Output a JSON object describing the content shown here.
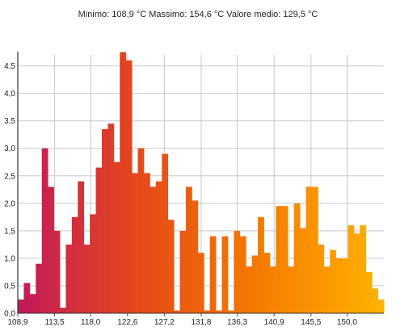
{
  "header": {
    "summary": "Minimo: 108,9 °C Massimo: 154,6 °C Valore medio: 129,5 °C"
  },
  "chart_data": {
    "type": "bar",
    "title": "",
    "xlabel": "",
    "ylabel": "",
    "unit": "°C",
    "grid": true,
    "xlim": [
      108.9,
      154.6
    ],
    "ylim": [
      0,
      4.7
    ],
    "x_ticks": [
      108.9,
      113.5,
      118.0,
      122.6,
      127.2,
      131.8,
      136.3,
      140.9,
      145.5,
      150.0
    ],
    "x_tick_labels": [
      "108,9",
      "113,5",
      "118,0",
      "122,6",
      "127,2",
      "131,8",
      "136,3",
      "140,9",
      "145,5",
      "150,0"
    ],
    "y_ticks": [
      0.0,
      0.5,
      1.0,
      1.5,
      2.0,
      2.5,
      3.0,
      3.5,
      4.0,
      4.5
    ],
    "y_tick_labels": [
      "0,0",
      "0,5",
      "1,0",
      "1,5",
      "2,0",
      "2,5",
      "3,0",
      "3,5",
      "4,0",
      "4,5"
    ],
    "values": [
      0.25,
      0.55,
      0.35,
      0.9,
      3.0,
      2.3,
      1.5,
      0.1,
      1.25,
      1.75,
      2.4,
      1.25,
      1.8,
      2.65,
      3.35,
      3.45,
      2.75,
      4.75,
      4.6,
      2.55,
      3.0,
      2.55,
      2.3,
      2.4,
      2.9,
      1.7,
      0.05,
      1.5,
      2.3,
      2.05,
      1.1,
      0.05,
      1.4,
      0.05,
      1.4,
      0.05,
      1.5,
      1.4,
      0.85,
      1.05,
      1.75,
      1.1,
      0.85,
      1.95,
      1.95,
      0.85,
      2.0,
      1.55,
      2.3,
      2.3,
      1.25,
      0.85,
      1.15,
      1.0,
      1.0,
      1.6,
      1.45,
      1.6,
      0.75,
      0.45,
      0.25
    ],
    "colors": [
      "#c2185b",
      "#e64a19",
      "#f57c00",
      "#ffb300"
    ]
  }
}
